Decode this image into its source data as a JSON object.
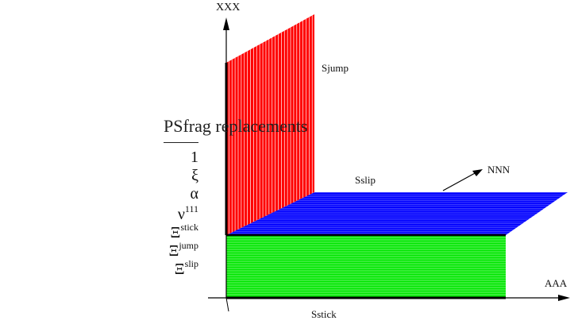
{
  "axes": {
    "vertical_label": "XXX",
    "horizontal_label": "AAA"
  },
  "surfaces": {
    "jump": {
      "label": "Sjump",
      "color": "#ff0000",
      "line_color": "#ffffff"
    },
    "slip": {
      "label": "Sslip",
      "color": "#0000ff",
      "line_color": "#7d7dff"
    },
    "stick": {
      "label": "Sstick",
      "color": "#00e600",
      "line_color": "#d8ffd8"
    }
  },
  "normal_vector_label": "NNN",
  "psfrag": {
    "title": "PSfrag replacements",
    "items": [
      {
        "base": "1",
        "sup": ""
      },
      {
        "base": "ξ",
        "sup": ""
      },
      {
        "base": "α",
        "sup": ""
      },
      {
        "base": "ν",
        "sup": "111"
      },
      {
        "base": "Ξ",
        "sup": "stick"
      },
      {
        "base": "Ξ",
        "sup": "jump"
      },
      {
        "base": "Ξ",
        "sup": "slip"
      }
    ]
  }
}
